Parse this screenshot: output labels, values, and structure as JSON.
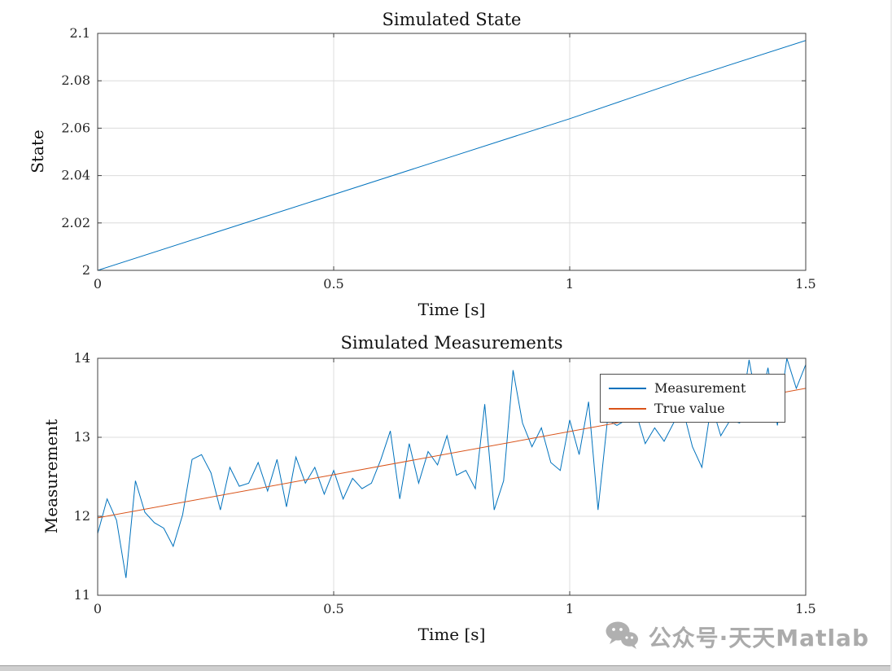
{
  "figure": {
    "background": "#ffffff",
    "colors": {
      "line_blue": "#0072BD",
      "line_orange": "#D95319",
      "grid": "#dcdcdc",
      "axis": "#404040",
      "tick_text": "#262626",
      "title_text": "#111111"
    }
  },
  "watermark": {
    "text": "公众号·天天Matlab"
  },
  "chart_data": [
    {
      "type": "line",
      "title": "Simulated State",
      "xlabel": "Time [s]",
      "ylabel": "State",
      "xlim": [
        0,
        1.5
      ],
      "ylim": [
        2,
        2.1
      ],
      "xticks": [
        0,
        0.5,
        1,
        1.5
      ],
      "xtick_labels": [
        "0",
        "0.5",
        "1",
        "1.5"
      ],
      "yticks": [
        2,
        2.02,
        2.04,
        2.06,
        2.08,
        2.1
      ],
      "ytick_labels": [
        "2",
        "2.02",
        "2.04",
        "2.06",
        "2.08",
        "2.1"
      ],
      "grid": true,
      "legend": null,
      "series": [
        {
          "name": "State",
          "color": "#0072BD",
          "x": [
            0,
            0.25,
            0.5,
            0.75,
            1.0,
            1.25,
            1.5
          ],
          "y": [
            2.0,
            2.016,
            2.032,
            2.048,
            2.064,
            2.081,
            2.097
          ]
        }
      ]
    },
    {
      "type": "line",
      "title": "Simulated Measurements",
      "xlabel": "Time [s]",
      "ylabel": "Measurement",
      "xlim": [
        0,
        1.5
      ],
      "ylim": [
        11,
        14
      ],
      "xticks": [
        0,
        0.5,
        1,
        1.5
      ],
      "xtick_labels": [
        "0",
        "0.5",
        "1",
        "1.5"
      ],
      "yticks": [
        11,
        12,
        13,
        14
      ],
      "ytick_labels": [
        "11",
        "12",
        "13",
        "14"
      ],
      "grid": true,
      "legend": {
        "position": "northeast",
        "entries": [
          "Measurement",
          "True value"
        ]
      },
      "series": [
        {
          "name": "Measurement",
          "color": "#0072BD",
          "x_start": 0,
          "x_step": 0.02,
          "y": [
            11.78,
            12.22,
            11.95,
            11.22,
            12.45,
            12.05,
            11.92,
            11.85,
            11.62,
            12.02,
            12.72,
            12.78,
            12.55,
            12.08,
            12.62,
            12.38,
            12.42,
            12.68,
            12.32,
            12.72,
            12.12,
            12.75,
            12.42,
            12.62,
            12.28,
            12.58,
            12.22,
            12.48,
            12.35,
            12.42,
            12.72,
            13.08,
            12.22,
            12.92,
            12.42,
            12.82,
            12.65,
            13.02,
            12.52,
            12.58,
            12.35,
            13.42,
            12.08,
            12.45,
            13.85,
            13.18,
            12.88,
            13.12,
            12.68,
            12.58,
            13.22,
            12.78,
            13.45,
            12.08,
            13.22,
            13.15,
            13.22,
            13.32,
            12.92,
            13.12,
            12.95,
            13.18,
            13.35,
            12.88,
            12.62,
            13.42,
            13.02,
            13.22,
            13.18,
            13.98,
            13.32,
            13.88,
            13.15,
            14.0,
            13.62,
            13.92
          ]
        },
        {
          "name": "True value",
          "color": "#D95319",
          "x": [
            0,
            1.5
          ],
          "y": [
            11.98,
            13.62
          ]
        }
      ]
    }
  ]
}
